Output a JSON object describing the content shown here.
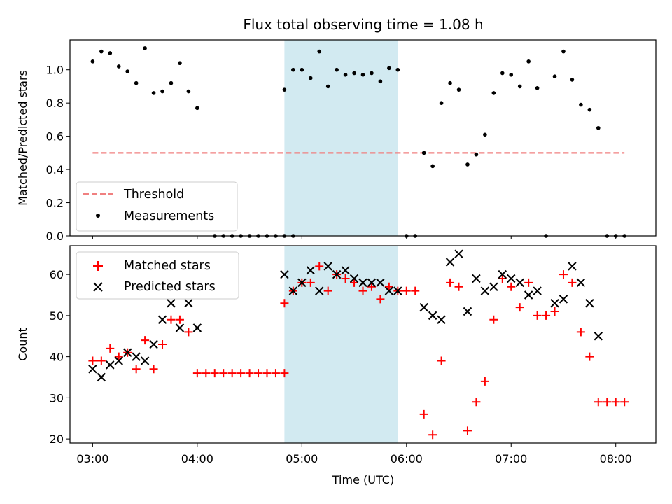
{
  "chart_data": {
    "title": "Flux total observing time = 1.08 h",
    "xlabel": "Time (UTC)",
    "x_unit": "hours UTC",
    "x_ticks": [
      "03:00",
      "04:00",
      "05:00",
      "06:00",
      "07:00",
      "08:00"
    ],
    "xlim": [
      "02:47",
      "08:23"
    ],
    "shaded_region": {
      "start": "04:50",
      "end": "05:55",
      "color": "#add8e6"
    },
    "panels": [
      {
        "type": "scatter",
        "ylabel": "Matched/Predicted stars",
        "ylim": [
          0.0,
          1.18
        ],
        "y_ticks": [
          "0.0",
          "0.2",
          "0.4",
          "0.6",
          "0.8",
          "1.0"
        ],
        "legend_position": "lower-left",
        "threshold": {
          "name": "Threshold",
          "value": 0.5,
          "x_start": "03:00",
          "x_end": "08:05",
          "color": "#f08080",
          "style": "dashed"
        },
        "series": [
          {
            "name": "Measurements",
            "color": "#000000",
            "marker": "dot",
            "points": [
              [
                "03:00",
                1.05
              ],
              [
                "03:05",
                1.11
              ],
              [
                "03:10",
                1.1
              ],
              [
                "03:15",
                1.02
              ],
              [
                "03:20",
                0.99
              ],
              [
                "03:25",
                0.92
              ],
              [
                "03:30",
                1.13
              ],
              [
                "03:35",
                0.86
              ],
              [
                "03:40",
                0.87
              ],
              [
                "03:45",
                0.92
              ],
              [
                "03:50",
                1.04
              ],
              [
                "03:55",
                0.87
              ],
              [
                "04:00",
                0.77
              ],
              [
                "04:10",
                0.0
              ],
              [
                "04:15",
                0.0
              ],
              [
                "04:20",
                0.0
              ],
              [
                "04:25",
                0.0
              ],
              [
                "04:30",
                0.0
              ],
              [
                "04:35",
                0.0
              ],
              [
                "04:40",
                0.0
              ],
              [
                "04:45",
                0.0
              ],
              [
                "04:50",
                0.0
              ],
              [
                "04:55",
                0.0
              ],
              [
                "04:50",
                0.88
              ],
              [
                "04:55",
                1.0
              ],
              [
                "05:00",
                1.0
              ],
              [
                "05:05",
                0.95
              ],
              [
                "05:10",
                1.11
              ],
              [
                "05:15",
                0.9
              ],
              [
                "05:20",
                1.0
              ],
              [
                "05:25",
                0.97
              ],
              [
                "05:30",
                0.98
              ],
              [
                "05:35",
                0.97
              ],
              [
                "05:40",
                0.98
              ],
              [
                "05:45",
                0.93
              ],
              [
                "05:50",
                1.01
              ],
              [
                "05:55",
                1.0
              ],
              [
                "06:00",
                0.0
              ],
              [
                "06:05",
                0.0
              ],
              [
                "06:10",
                0.5
              ],
              [
                "06:15",
                0.42
              ],
              [
                "06:20",
                0.8
              ],
              [
                "06:25",
                0.92
              ],
              [
                "06:30",
                0.88
              ],
              [
                "06:35",
                0.43
              ],
              [
                "06:40",
                0.49
              ],
              [
                "06:45",
                0.61
              ],
              [
                "06:50",
                0.86
              ],
              [
                "06:55",
                0.98
              ],
              [
                "07:00",
                0.97
              ],
              [
                "07:05",
                0.9
              ],
              [
                "07:10",
                1.05
              ],
              [
                "07:15",
                0.89
              ],
              [
                "07:20",
                0.0
              ],
              [
                "07:25",
                0.96
              ],
              [
                "07:30",
                1.11
              ],
              [
                "07:35",
                0.94
              ],
              [
                "07:40",
                0.79
              ],
              [
                "07:45",
                0.76
              ],
              [
                "07:50",
                0.65
              ],
              [
                "07:55",
                0.0
              ],
              [
                "08:00",
                0.0
              ],
              [
                "08:05",
                0.0
              ]
            ]
          }
        ]
      },
      {
        "type": "scatter",
        "ylabel": "Count",
        "ylim": [
          19,
          67
        ],
        "y_ticks": [
          "20",
          "30",
          "40",
          "50",
          "60"
        ],
        "legend_position": "top-left",
        "series": [
          {
            "name": "Matched stars",
            "color": "#ff0000",
            "marker": "plus",
            "points": [
              [
                "03:00",
                39
              ],
              [
                "03:05",
                39
              ],
              [
                "03:10",
                42
              ],
              [
                "03:15",
                40
              ],
              [
                "03:20",
                41
              ],
              [
                "03:25",
                37
              ],
              [
                "03:30",
                44
              ],
              [
                "03:35",
                37
              ],
              [
                "03:40",
                43
              ],
              [
                "03:45",
                49
              ],
              [
                "03:50",
                49
              ],
              [
                "03:55",
                46
              ],
              [
                "04:00",
                36
              ],
              [
                "04:05",
                36
              ],
              [
                "04:10",
                36
              ],
              [
                "04:15",
                36
              ],
              [
                "04:20",
                36
              ],
              [
                "04:25",
                36
              ],
              [
                "04:30",
                36
              ],
              [
                "04:35",
                36
              ],
              [
                "04:40",
                36
              ],
              [
                "04:45",
                36
              ],
              [
                "04:50",
                36
              ],
              [
                "04:50",
                53
              ],
              [
                "04:55",
                56
              ],
              [
                "05:00",
                58
              ],
              [
                "05:05",
                58
              ],
              [
                "05:10",
                62
              ],
              [
                "05:15",
                56
              ],
              [
                "05:20",
                60
              ],
              [
                "05:25",
                59
              ],
              [
                "05:30",
                58
              ],
              [
                "05:35",
                56
              ],
              [
                "05:40",
                57
              ],
              [
                "05:45",
                54
              ],
              [
                "05:50",
                57
              ],
              [
                "05:55",
                56
              ],
              [
                "06:00",
                56
              ],
              [
                "06:05",
                56
              ],
              [
                "06:10",
                26
              ],
              [
                "06:15",
                21
              ],
              [
                "06:20",
                39
              ],
              [
                "06:25",
                58
              ],
              [
                "06:30",
                57
              ],
              [
                "06:35",
                22
              ],
              [
                "06:40",
                29
              ],
              [
                "06:45",
                34
              ],
              [
                "06:50",
                49
              ],
              [
                "06:55",
                59
              ],
              [
                "07:00",
                57
              ],
              [
                "07:05",
                52
              ],
              [
                "07:10",
                58
              ],
              [
                "07:15",
                50
              ],
              [
                "07:20",
                50
              ],
              [
                "07:25",
                51
              ],
              [
                "07:30",
                60
              ],
              [
                "07:35",
                58
              ],
              [
                "07:40",
                46
              ],
              [
                "07:45",
                40
              ],
              [
                "07:50",
                29
              ],
              [
                "07:55",
                29
              ],
              [
                "08:00",
                29
              ],
              [
                "08:05",
                29
              ]
            ]
          },
          {
            "name": "Predicted stars",
            "color": "#000000",
            "marker": "x",
            "points": [
              [
                "03:00",
                37
              ],
              [
                "03:05",
                35
              ],
              [
                "03:10",
                38
              ],
              [
                "03:15",
                39
              ],
              [
                "03:20",
                41
              ],
              [
                "03:25",
                40
              ],
              [
                "03:30",
                39
              ],
              [
                "03:35",
                43
              ],
              [
                "03:40",
                49
              ],
              [
                "03:45",
                53
              ],
              [
                "03:50",
                47
              ],
              [
                "03:55",
                53
              ],
              [
                "04:00",
                47
              ],
              [
                "04:50",
                60
              ],
              [
                "04:55",
                56
              ],
              [
                "05:00",
                58
              ],
              [
                "05:05",
                61
              ],
              [
                "05:10",
                56
              ],
              [
                "05:15",
                62
              ],
              [
                "05:20",
                60
              ],
              [
                "05:25",
                61
              ],
              [
                "05:30",
                59
              ],
              [
                "05:35",
                58
              ],
              [
                "05:40",
                58
              ],
              [
                "05:45",
                58
              ],
              [
                "05:50",
                56
              ],
              [
                "05:55",
                56
              ],
              [
                "06:10",
                52
              ],
              [
                "06:15",
                50
              ],
              [
                "06:20",
                49
              ],
              [
                "06:25",
                63
              ],
              [
                "06:30",
                65
              ],
              [
                "06:35",
                51
              ],
              [
                "06:40",
                59
              ],
              [
                "06:45",
                56
              ],
              [
                "06:50",
                57
              ],
              [
                "06:55",
                60
              ],
              [
                "07:00",
                59
              ],
              [
                "07:05",
                58
              ],
              [
                "07:10",
                55
              ],
              [
                "07:15",
                56
              ],
              [
                "07:25",
                53
              ],
              [
                "07:30",
                54
              ],
              [
                "07:35",
                62
              ],
              [
                "07:40",
                58
              ],
              [
                "07:45",
                53
              ],
              [
                "07:50",
                45
              ]
            ]
          }
        ]
      }
    ]
  }
}
